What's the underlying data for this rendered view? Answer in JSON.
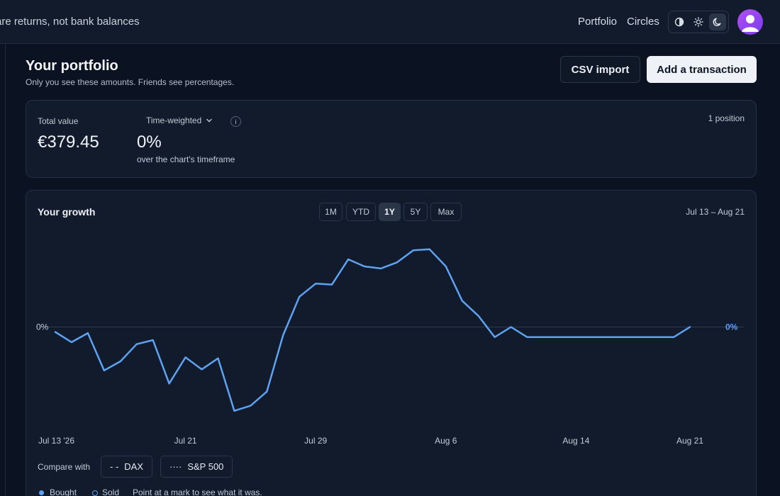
{
  "topbar": {
    "tagline": "are returns, not bank balances",
    "nav": [
      {
        "label": "Portfolio"
      },
      {
        "label": "Circles"
      }
    ],
    "theme_modes": [
      "contrast-icon",
      "sun-icon",
      "moon-icon"
    ],
    "active_theme": "moon-icon"
  },
  "header": {
    "title": "Your portfolio",
    "subtitle": "Only you see these amounts. Friends see percentages.",
    "csv_label": "CSV import",
    "add_label": "Add a transaction"
  },
  "summary": {
    "total_label": "Total value",
    "total_value": "€379.45",
    "method_label": "Time-weighted",
    "info_glyph": "i",
    "return_value": "0%",
    "return_caption": "over the chart's timeframe",
    "positions": "1 position"
  },
  "growth": {
    "title": "Your growth",
    "ranges": [
      {
        "label": "1M"
      },
      {
        "label": "YTD"
      },
      {
        "label": "1Y"
      },
      {
        "label": "5Y"
      },
      {
        "label": "Max"
      }
    ],
    "active_range": "1Y",
    "date_range": "Jul 13 – Aug 21",
    "compare_label": "Compare with",
    "compare": [
      {
        "label": "DAX",
        "glyph": "- -"
      },
      {
        "label": "S&P 500",
        "glyph": "····"
      }
    ],
    "legend": {
      "bought": "Bought",
      "sold": "Sold",
      "hint": "Point at a mark to see what it was."
    }
  },
  "chart_data": {
    "type": "line",
    "x": [
      "Jul 13",
      "Jul 14",
      "Jul 15",
      "Jul 16",
      "Jul 17",
      "Jul 18",
      "Jul 19",
      "Jul 20",
      "Jul 21",
      "Jul 22",
      "Jul 23",
      "Jul 24",
      "Jul 25",
      "Jul 26",
      "Jul 27",
      "Jul 28",
      "Jul 29",
      "Jul 30",
      "Jul 31",
      "Aug 1",
      "Aug 2",
      "Aug 3",
      "Aug 4",
      "Aug 5",
      "Aug 6",
      "Aug 7",
      "Aug 8",
      "Aug 9",
      "Aug 10",
      "Aug 11",
      "Aug 12",
      "Aug 13",
      "Aug 14",
      "Aug 15",
      "Aug 16",
      "Aug 17",
      "Aug 18",
      "Aug 19",
      "Aug 20",
      "Aug 21"
    ],
    "series": [
      {
        "values": [
          -0.5,
          -1.5,
          -0.6,
          -4.3,
          -3.4,
          -1.7,
          -1.3,
          -5.6,
          -3.0,
          -4.2,
          -3.1,
          -8.3,
          -7.8,
          -6.4,
          -0.8,
          3.0,
          4.3,
          4.2,
          6.7,
          6.0,
          5.8,
          6.4,
          7.6,
          7.7,
          6.0,
          2.6,
          1.1,
          -1.0,
          0.0,
          -1.0,
          -1.0,
          -1.0,
          -1.0,
          -1.0,
          -1.0,
          -1.0,
          -1.0,
          -1.0,
          -1.0,
          0.0
        ]
      }
    ],
    "baseline_label": "0%",
    "end_label": "0%",
    "x_ticks": [
      "Jul 13 '26",
      "Jul 21",
      "Jul 29",
      "Aug 6",
      "Aug 14",
      "Aug 21"
    ],
    "line_color": "#5ea2f2",
    "grid": false
  }
}
